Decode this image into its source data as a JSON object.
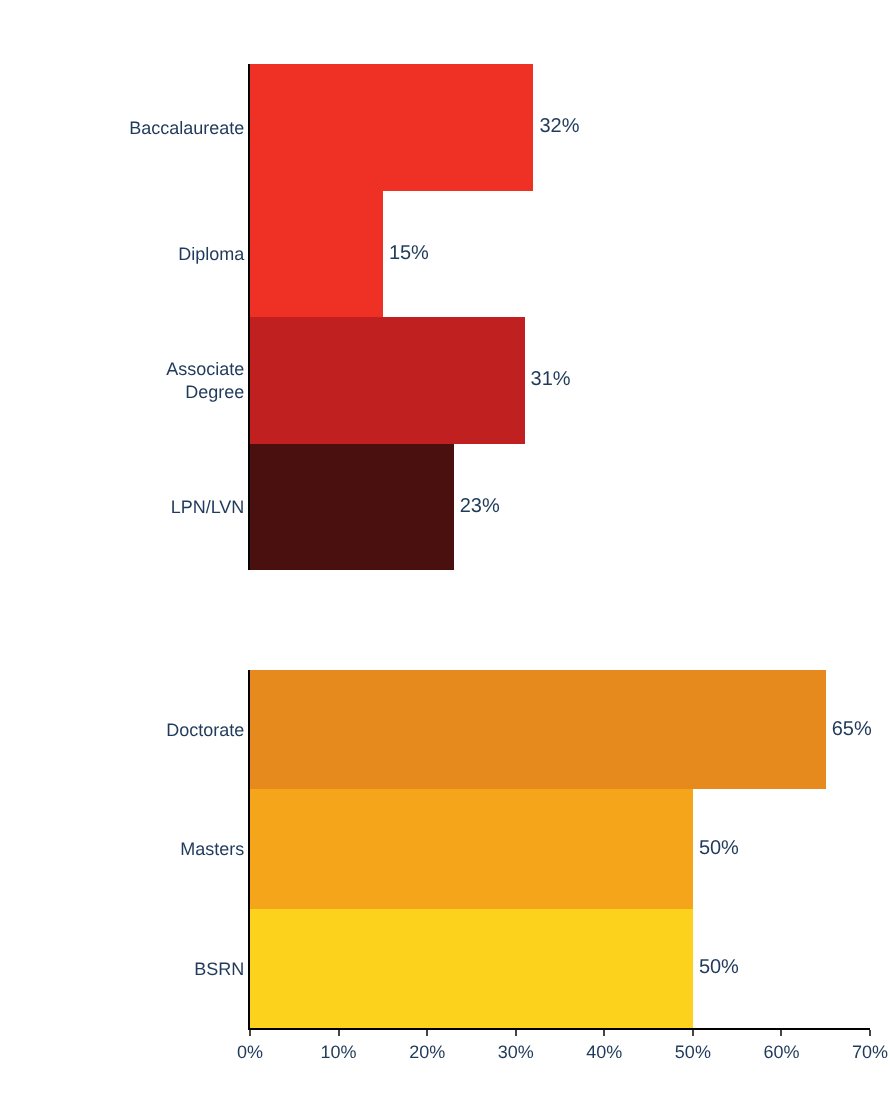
{
  "chart_data": [
    {
      "type": "bar",
      "orientation": "horizontal",
      "categories": [
        "Baccalaureate",
        "Diploma",
        "Associate\nDegree",
        "LPN/LVN"
      ],
      "values": [
        32,
        15,
        31,
        23
      ],
      "colors": [
        "#ee3124",
        "#ee3124",
        "#c0201f",
        "#4a0f0f"
      ],
      "value_labels": [
        "32%",
        "15%",
        "31%",
        "23%"
      ],
      "xlim": [
        0,
        70
      ],
      "tick_labels": "y",
      "grid": false
    },
    {
      "type": "bar",
      "orientation": "horizontal",
      "categories": [
        "Doctorate",
        "Masters",
        "BSRN"
      ],
      "values": [
        65,
        50,
        50
      ],
      "colors": [
        "#e68a1e",
        "#f5a51a",
        "#fdd21c"
      ],
      "value_labels": [
        "65%",
        "50%",
        "50%"
      ],
      "xlim": [
        0,
        70
      ],
      "xticks": [
        {
          "value": 0,
          "label": "0%"
        },
        {
          "value": 10,
          "label": "10%"
        },
        {
          "value": 20,
          "label": "20%"
        },
        {
          "value": 30,
          "label": "30%"
        },
        {
          "value": 40,
          "label": "40%"
        },
        {
          "value": 50,
          "label": "50%"
        },
        {
          "value": 60,
          "label": "60%"
        },
        {
          "value": 70,
          "label": "70%"
        }
      ],
      "grid": false
    }
  ]
}
